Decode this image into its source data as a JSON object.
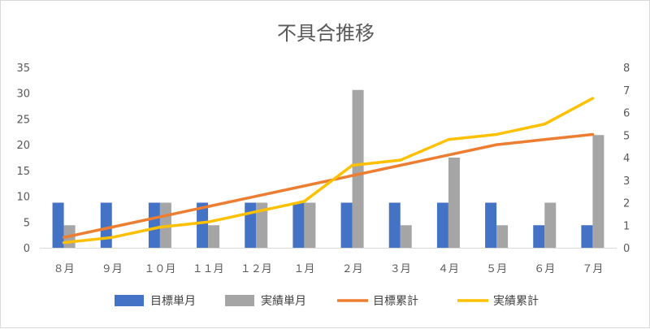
{
  "chart_data": {
    "type": "bar",
    "title": "不具合推移",
    "categories": [
      "8月",
      "9月",
      "10月",
      "11月",
      "12月",
      "1月",
      "2月",
      "3月",
      "4月",
      "5月",
      "6月",
      "7月"
    ],
    "category_tick_labels": [
      "８月",
      "９月",
      "１０月",
      "１１月",
      "１２月",
      "１月",
      "２月",
      "３月",
      "４月",
      "５月",
      "６月",
      "７月"
    ],
    "y_left": {
      "min": 0,
      "max": 35,
      "step": 5,
      "ticks": [
        "0",
        "5",
        "10",
        "15",
        "20",
        "25",
        "30",
        "35"
      ]
    },
    "y_right": {
      "min": 0,
      "max": 8,
      "step": 1,
      "ticks": [
        "0",
        "1",
        "2",
        "3",
        "4",
        "5",
        "6",
        "7",
        "8"
      ]
    },
    "grid": false,
    "legend_position": "bottom",
    "series": [
      {
        "name": "目標単月",
        "kind": "bar",
        "axis": "right",
        "color": "#4472C4",
        "values": [
          2,
          2,
          2,
          2,
          2,
          2,
          2,
          2,
          2,
          2,
          1,
          1
        ]
      },
      {
        "name": "実績単月",
        "kind": "bar",
        "axis": "right",
        "color": "#A5A5A5",
        "values": [
          1,
          0,
          2,
          1,
          2,
          2,
          7,
          1,
          4,
          1,
          2,
          5
        ]
      },
      {
        "name": "目標累計",
        "kind": "line",
        "axis": "left",
        "color": "#ED7D31",
        "values": [
          2,
          4,
          6,
          8,
          10,
          12,
          14,
          16,
          18,
          20,
          21,
          22
        ]
      },
      {
        "name": "実績累計",
        "kind": "line",
        "axis": "left",
        "color": "#FFC000",
        "values": [
          1,
          2,
          4,
          5,
          7,
          9,
          16,
          17,
          21,
          22,
          24,
          29
        ]
      }
    ]
  }
}
